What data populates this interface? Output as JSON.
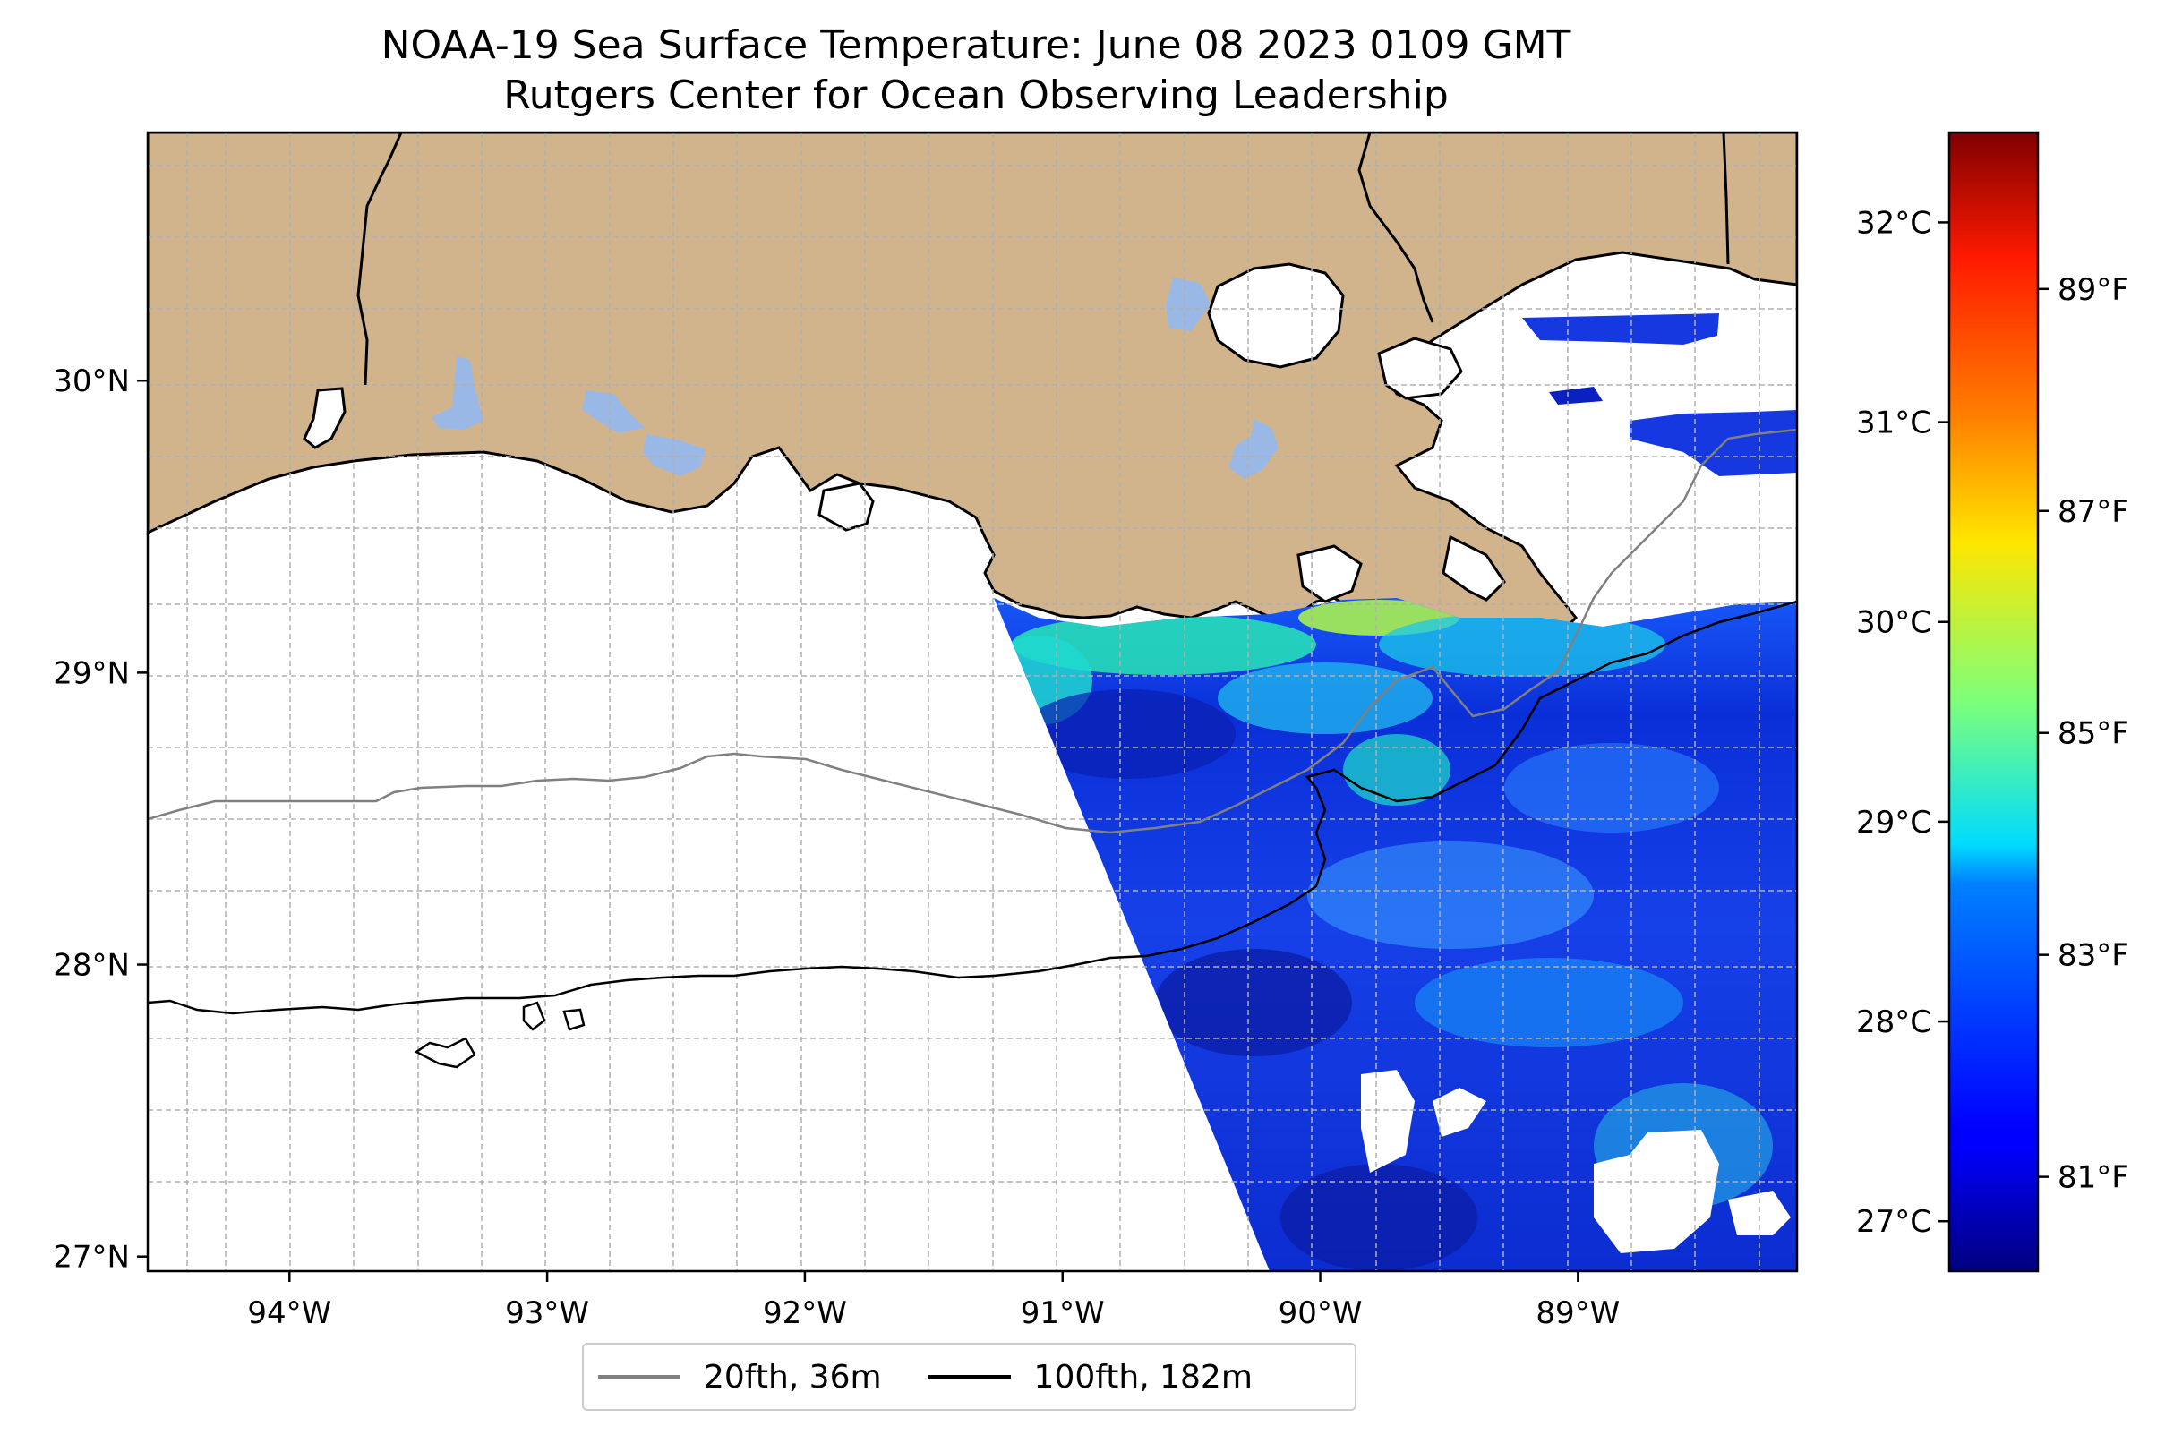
{
  "title": "NOAA-19 Sea Surface Temperature: June 08 2023 0109 GMT",
  "subtitle": "Rutgers Center for Ocean Observing Leadership",
  "map": {
    "lon_range": [
      -94.55,
      -88.15
    ],
    "lat_range": [
      26.95,
      30.85
    ],
    "lon_ticks": [
      {
        "value": -94,
        "label": "94°W"
      },
      {
        "value": -93,
        "label": "93°W"
      },
      {
        "value": -92,
        "label": "92°W"
      },
      {
        "value": -91,
        "label": "91°W"
      },
      {
        "value": -90,
        "label": "90°W"
      },
      {
        "value": -89,
        "label": "89°W"
      }
    ],
    "lat_ticks": [
      {
        "value": 27,
        "label": "27°N"
      },
      {
        "value": 28,
        "label": "28°N"
      },
      {
        "value": 29,
        "label": "29°N"
      },
      {
        "value": 30,
        "label": "30°N"
      }
    ],
    "grid": true,
    "land_color": "#d2b48c",
    "lake_color": "#9ab8e6",
    "isobath_20_color": "#808080",
    "isobath_100_color": "#000000"
  },
  "colorbar": {
    "colormap": "jet",
    "celsius_range": [
      26.75,
      32.45
    ],
    "celsius_ticks": [
      {
        "value": 27,
        "label": "27°C"
      },
      {
        "value": 28,
        "label": "28°C"
      },
      {
        "value": 29,
        "label": "29°C"
      },
      {
        "value": 30,
        "label": "30°C"
      },
      {
        "value": 31,
        "label": "31°C"
      },
      {
        "value": 32,
        "label": "32°C"
      }
    ],
    "fahrenheit_ticks": [
      {
        "value": 81,
        "label": "81°F"
      },
      {
        "value": 83,
        "label": "83°F"
      },
      {
        "value": 85,
        "label": "85°F"
      },
      {
        "value": 87,
        "label": "87°F"
      },
      {
        "value": 89,
        "label": "89°F"
      }
    ]
  },
  "legend": {
    "items": [
      {
        "label": "20fth, 36m",
        "color": "#808080"
      },
      {
        "label": "100fth, 182m",
        "color": "#000000"
      }
    ]
  }
}
